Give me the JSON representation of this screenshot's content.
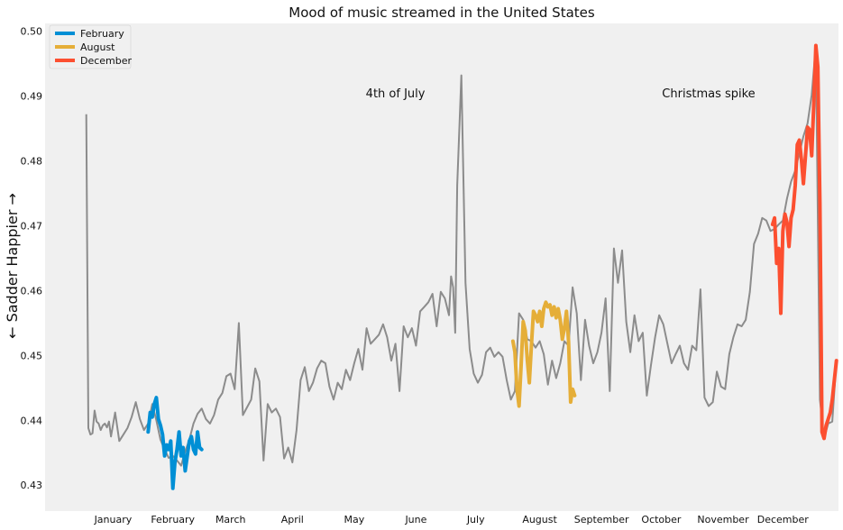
{
  "chart_data": {
    "type": "line",
    "title": "Mood of music streamed in the United States",
    "ylabel": "← Sadder          Happier →",
    "xlabel": "",
    "ylim": [
      0.426,
      0.5012
    ],
    "xlim": [
      -20,
      365
    ],
    "grid": false,
    "legend_position": "top-left",
    "x_ticks": [
      {
        "label": "January",
        "day": 13
      },
      {
        "label": "February",
        "day": 42
      },
      {
        "label": "March",
        "day": 70
      },
      {
        "label": "April",
        "day": 100
      },
      {
        "label": "May",
        "day": 130
      },
      {
        "label": "June",
        "day": 160
      },
      {
        "label": "July",
        "day": 189
      },
      {
        "label": "August",
        "day": 220
      },
      {
        "label": "September",
        "day": 250
      },
      {
        "label": "October",
        "day": 279
      },
      {
        "label": "November",
        "day": 309
      },
      {
        "label": "December",
        "day": 338
      }
    ],
    "y_ticks": [
      0.43,
      0.44,
      0.45,
      0.46,
      0.47,
      0.48,
      0.49,
      0.5
    ],
    "y_tick_labels": [
      "0.43",
      "0.44",
      "0.45",
      "0.46",
      "0.47",
      "0.48",
      "0.49",
      "0.50"
    ],
    "annotations": [
      {
        "text": "4th of July",
        "day": 150,
        "value": 0.4898
      },
      {
        "text": "Christmas spike",
        "day": 302,
        "value": 0.4898
      }
    ],
    "base_series": {
      "color": "#8c8c8c",
      "x": [
        0,
        1,
        2,
        3,
        4,
        5,
        6,
        7,
        8,
        9,
        10,
        11,
        12,
        14,
        16,
        18,
        20,
        22,
        24,
        26,
        28,
        30,
        32,
        34,
        36,
        38,
        40,
        42,
        44,
        46,
        48,
        50,
        52,
        54,
        56,
        58,
        60,
        62,
        64,
        66,
        68,
        70,
        72,
        74,
        76,
        78,
        80,
        82,
        84,
        86,
        88,
        90,
        92,
        94,
        96,
        98,
        100,
        102,
        104,
        106,
        108,
        110,
        112,
        114,
        116,
        118,
        120,
        122,
        124,
        126,
        128,
        130,
        132,
        134,
        136,
        138,
        140,
        142,
        144,
        146,
        148,
        150,
        152,
        154,
        156,
        158,
        160,
        162,
        164,
        166,
        168,
        170,
        172,
        174,
        176,
        177,
        178,
        179,
        180,
        182,
        184,
        186,
        188,
        190,
        192,
        194,
        196,
        198,
        200,
        202,
        204,
        206,
        208,
        210,
        212,
        214,
        216,
        218,
        220,
        222,
        224,
        226,
        228,
        230,
        232,
        234,
        236,
        238,
        240,
        242,
        244,
        246,
        248,
        250,
        252,
        254,
        256,
        258,
        260,
        262,
        264,
        266,
        268,
        270,
        272,
        274,
        276,
        278,
        280,
        282,
        284,
        286,
        288,
        290,
        292,
        294,
        296,
        298,
        300,
        302,
        304,
        306,
        308,
        310,
        312,
        314,
        316,
        318,
        320,
        322,
        324,
        326,
        328,
        330,
        332,
        334,
        336,
        338,
        340,
        342,
        344,
        346,
        348,
        350,
        352,
        354,
        356,
        358,
        360,
        362,
        364
      ],
      "values": [
        0.4872,
        0.4388,
        0.4378,
        0.438,
        0.4415,
        0.4398,
        0.4395,
        0.4385,
        0.4392,
        0.4395,
        0.4389,
        0.4398,
        0.4375,
        0.4412,
        0.4368,
        0.4378,
        0.4388,
        0.4405,
        0.4428,
        0.4402,
        0.4385,
        0.4395,
        0.4425,
        0.44,
        0.437,
        0.4355,
        0.4342,
        0.4345,
        0.4338,
        0.433,
        0.4352,
        0.437,
        0.4395,
        0.441,
        0.4418,
        0.4402,
        0.4395,
        0.4408,
        0.4432,
        0.4442,
        0.4468,
        0.4472,
        0.4448,
        0.455,
        0.4408,
        0.442,
        0.4432,
        0.448,
        0.446,
        0.4338,
        0.4425,
        0.4412,
        0.4418,
        0.4405,
        0.4341,
        0.4358,
        0.4335,
        0.4385,
        0.4462,
        0.4482,
        0.4445,
        0.4458,
        0.448,
        0.4492,
        0.4488,
        0.4452,
        0.4432,
        0.4458,
        0.4448,
        0.4478,
        0.4462,
        0.4488,
        0.451,
        0.4478,
        0.4542,
        0.4518,
        0.4525,
        0.4532,
        0.4548,
        0.4528,
        0.4492,
        0.4518,
        0.4445,
        0.4545,
        0.4528,
        0.4542,
        0.4515,
        0.4568,
        0.4575,
        0.4582,
        0.4595,
        0.4545,
        0.4598,
        0.4588,
        0.4562,
        0.4622,
        0.4605,
        0.4535,
        0.4762,
        0.4932,
        0.4612,
        0.451,
        0.4472,
        0.4458,
        0.447,
        0.4505,
        0.4512,
        0.4498,
        0.4505,
        0.4498,
        0.4462,
        0.4432,
        0.4445,
        0.4565,
        0.4555,
        0.4525,
        0.4522,
        0.4512,
        0.4522,
        0.4502,
        0.4455,
        0.4492,
        0.4465,
        0.4488,
        0.4522,
        0.4515,
        0.4605,
        0.4565,
        0.4462,
        0.4555,
        0.4515,
        0.4488,
        0.4505,
        0.4535,
        0.4588,
        0.4445,
        0.4665,
        0.4612,
        0.4662,
        0.4552,
        0.4505,
        0.4562,
        0.4522,
        0.4535,
        0.4438,
        0.4485,
        0.4528,
        0.4562,
        0.4548,
        0.4518,
        0.4488,
        0.4502,
        0.4515,
        0.4488,
        0.4478,
        0.4515,
        0.4508,
        0.4602,
        0.4435,
        0.4422,
        0.4428,
        0.4475,
        0.4452,
        0.4448,
        0.4502,
        0.4528,
        0.4548,
        0.4545,
        0.4555,
        0.4598,
        0.4672,
        0.4688,
        0.4712,
        0.4708,
        0.4692,
        0.4695,
        0.4702,
        0.4708,
        0.4742,
        0.4768,
        0.4785,
        0.4812,
        0.4838,
        0.4858,
        0.4902,
        0.4978,
        0.4432,
        0.4372,
        0.4395,
        0.4398,
        0.4492
      ]
    },
    "series": [
      {
        "name": "February",
        "color": "#008fd5",
        "x": [
          30,
          31,
          32,
          33,
          34,
          35,
          36,
          37,
          38,
          39,
          40,
          41,
          42,
          43,
          44,
          45,
          46,
          47,
          48,
          49,
          50,
          51,
          52,
          53,
          54,
          55,
          56
        ],
        "values": [
          0.4382,
          0.4412,
          0.4405,
          0.4425,
          0.4435,
          0.4402,
          0.4392,
          0.4378,
          0.4345,
          0.4362,
          0.4355,
          0.4368,
          0.4295,
          0.4335,
          0.4355,
          0.4382,
          0.4345,
          0.4358,
          0.4322,
          0.4345,
          0.4368,
          0.4375,
          0.4355,
          0.4348,
          0.4382,
          0.4358,
          0.4355
        ]
      },
      {
        "name": "August",
        "color": "#e5ae38",
        "x": [
          207,
          208,
          209,
          210,
          211,
          212,
          213,
          214,
          215,
          216,
          217,
          218,
          219,
          220,
          221,
          222,
          223,
          224,
          225,
          226,
          227,
          228,
          229,
          230,
          231,
          232,
          233,
          234,
          235,
          236,
          237
        ],
        "values": [
          0.4522,
          0.4505,
          0.4448,
          0.4422,
          0.4485,
          0.4552,
          0.4538,
          0.4492,
          0.4458,
          0.4515,
          0.4568,
          0.4562,
          0.4552,
          0.4568,
          0.4545,
          0.4572,
          0.4582,
          0.4575,
          0.4578,
          0.4562,
          0.4575,
          0.4558,
          0.4572,
          0.4555,
          0.4525,
          0.4542,
          0.4568,
          0.4522,
          0.4428,
          0.4448,
          0.4438
        ]
      },
      {
        "name": "December",
        "color": "#fc4f30",
        "x": [
          333,
          334,
          335,
          336,
          337,
          338,
          339,
          340,
          341,
          342,
          343,
          344,
          345,
          346,
          347,
          348,
          349,
          350,
          351,
          352,
          353,
          354,
          355,
          356,
          357,
          358,
          359,
          360,
          361,
          362,
          363,
          364
        ],
        "values": [
          0.4702,
          0.4712,
          0.4642,
          0.4665,
          0.4565,
          0.4692,
          0.4718,
          0.4705,
          0.4668,
          0.4712,
          0.4725,
          0.4762,
          0.4825,
          0.4832,
          0.4802,
          0.4765,
          0.4808,
          0.4852,
          0.4848,
          0.4808,
          0.4888,
          0.4978,
          0.4945,
          0.4735,
          0.4382,
          0.4372,
          0.4392,
          0.4402,
          0.4412,
          0.4432,
          0.4462,
          0.4492
        ]
      }
    ]
  }
}
